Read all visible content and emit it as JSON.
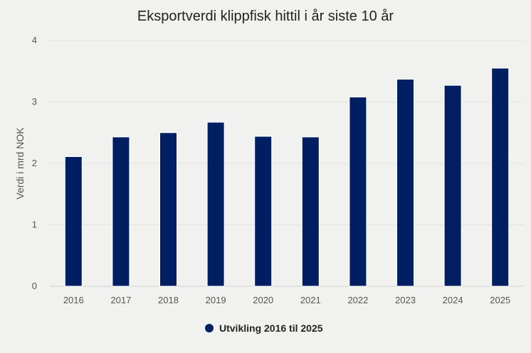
{
  "chart_data": {
    "type": "bar",
    "title": "Eksportverdi klippfisk hittil i år siste 10 år",
    "xlabel": "",
    "ylabel": "Verdi i mrd NOK",
    "categories": [
      "2016",
      "2017",
      "2018",
      "2019",
      "2020",
      "2021",
      "2022",
      "2023",
      "2024",
      "2025"
    ],
    "series": [
      {
        "name": "Utvikling 2016 til 2025",
        "color": "#001e62",
        "values": [
          2.11,
          2.43,
          2.5,
          2.67,
          2.44,
          2.43,
          3.08,
          3.37,
          3.27,
          3.55
        ]
      }
    ],
    "ylim": [
      0,
      4
    ],
    "yticks": [
      "0",
      "1",
      "2",
      "3",
      "4"
    ],
    "grid": true,
    "legend": "bottom-center"
  }
}
